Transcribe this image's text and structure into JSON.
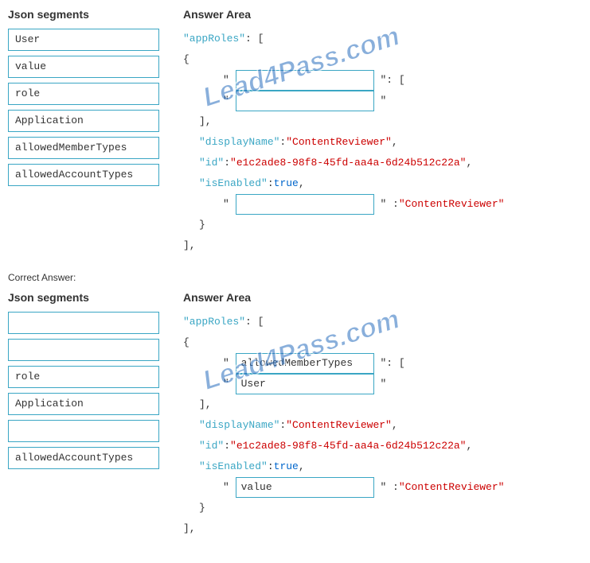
{
  "headers": {
    "segments": "Json segments",
    "answer": "Answer Area"
  },
  "question": {
    "segments": [
      "User",
      "value",
      "role",
      "Application",
      "allowedMemberTypes",
      "allowedAccountTypes"
    ],
    "drops": [
      "",
      "",
      ""
    ]
  },
  "answer": {
    "segments": [
      "",
      "",
      "role",
      "Application",
      "",
      "allowedAccountTypes"
    ],
    "drops": [
      "allowedMemberTypes",
      "User",
      "value"
    ]
  },
  "code": {
    "appRoles": "\"appRoles\"",
    "colonBracket": " : [",
    "openBrace": "{",
    "q": "\"",
    "qColonBracket": "\": [",
    "closeBracketComma": "],",
    "displayName_key": "\"displayName\"",
    "displayName_val": "\"ContentReviewer\"",
    "id_key": "\"id\"",
    "id_val": "\"e1c2ade8-98f8-45fd-aa4a-6d24b512c22a\"",
    "isEnabled_key": "\"isEnabled\"",
    "isEnabled_val": "true",
    "lastVal": "\"ContentReviewer\"",
    "closeBrace": "}",
    "closeAll": "],",
    "comma": ",",
    "colon": ": ",
    "colonSpc": " : ",
    "qColon": "\" :"
  },
  "correctLabel": "Correct Answer:",
  "watermark": "Lead4Pass.com"
}
